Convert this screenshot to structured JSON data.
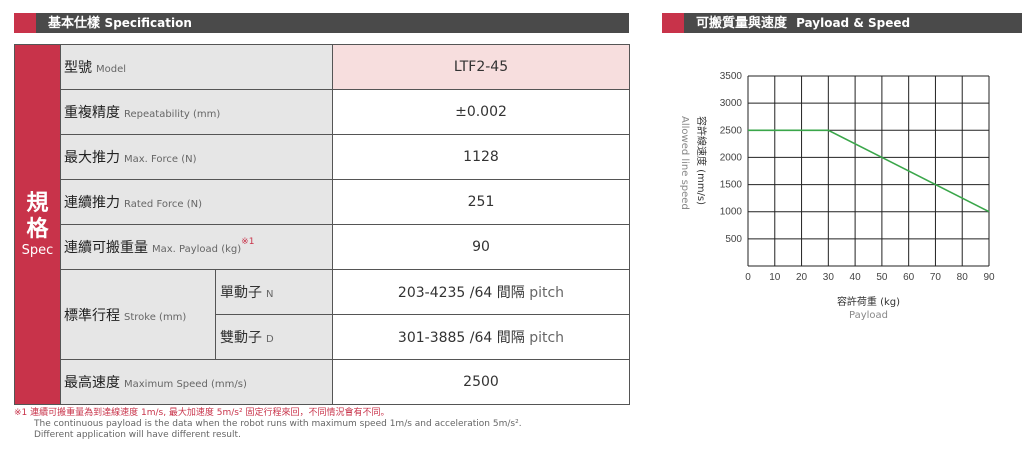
{
  "spec": {
    "header_zh": "基本仕樣",
    "header_en": "Specification",
    "side_zh_1": "規",
    "side_zh_2": "格",
    "side_en": "Spec",
    "rows": {
      "model": {
        "zh": "型號",
        "en": "Model",
        "value": "LTF2-45"
      },
      "repeat": {
        "zh": "重複精度",
        "en": "Repeatability (mm)",
        "value": "±0.002"
      },
      "maxforce": {
        "zh": "最大推力",
        "en": "Max. Force (N)",
        "value": "1128"
      },
      "rated": {
        "zh": "連續推力",
        "en": "Rated Force (N)",
        "value": "251"
      },
      "payload": {
        "zh": "連續可搬重量",
        "en": "Max. Payload (kg)",
        "ref": "※1",
        "value": "90"
      },
      "stroke": {
        "zh": "標準行程",
        "en": "Stroke (mm)",
        "single": {
          "zh": "單動子",
          "en": "N",
          "value": "203-4235 /64 間隔",
          "unit": "pitch"
        },
        "double": {
          "zh": "雙動子",
          "en": "D",
          "value": "301-3885 /64 間隔",
          "unit": "pitch"
        }
      },
      "speed": {
        "zh": "最高速度",
        "en": "Maximum Speed (mm/s)",
        "value": "2500"
      }
    }
  },
  "notes": {
    "n1": "※1 連續可搬重量為到達線速度 1m/s, 最大加速度 5m/s² 固定行程來回，不同情況會有不同。",
    "n2": "The continuous payload is the data when the robot runs with maximum speed 1m/s and acceleration 5m/s².",
    "n3": "Different application will have different result."
  },
  "chart_header": {
    "zh": "可搬質量與速度",
    "en": "Payload & Speed"
  },
  "colors": {
    "accent": "#c8334a",
    "header": "#4a4a4a",
    "line": "#3aa64a"
  },
  "chart_data": {
    "type": "line",
    "xlabel_zh": "容許荷重 (kg)",
    "xlabel_en": "Payload",
    "ylabel_zh": "容許線速度 (mm/s)",
    "ylabel_en": "Allowed line speed",
    "xlim": [
      0,
      90
    ],
    "ylim": [
      0,
      3500
    ],
    "xticks": [
      0,
      10,
      20,
      30,
      40,
      50,
      60,
      70,
      80,
      90
    ],
    "yticks": [
      500,
      1000,
      1500,
      2000,
      2500,
      3000,
      3500
    ],
    "grid": true,
    "series": [
      {
        "x": [
          0,
          30,
          90
        ],
        "y": [
          2500,
          2500,
          1000
        ]
      }
    ]
  }
}
